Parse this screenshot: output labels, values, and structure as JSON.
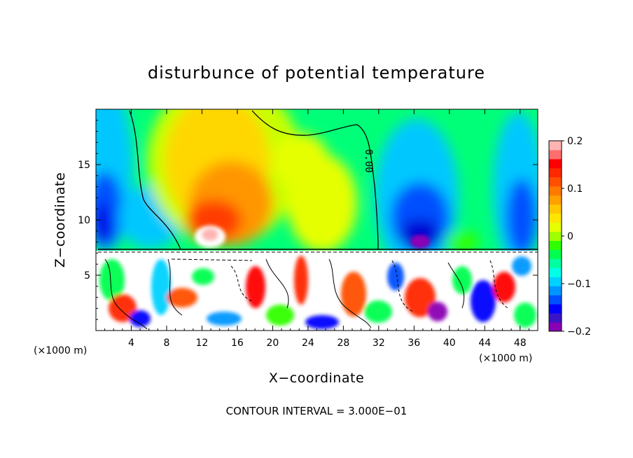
{
  "chart_data": {
    "type": "heatmap",
    "title": "disturbunce of potential temperature",
    "xlabel": "X−coordinate",
    "ylabel": "Z−coordinate",
    "x_unit": "(×1000 m)",
    "x_ticks": [
      4,
      8,
      12,
      16,
      20,
      24,
      28,
      32,
      36,
      40,
      44,
      48
    ],
    "y_ticks": [
      5,
      10,
      15
    ],
    "xlim": [
      0,
      50
    ],
    "ylim": [
      0,
      20
    ],
    "colorbar": {
      "range": [
        -0.2,
        0.2
      ],
      "tick_labels": [
        "0.2",
        "0.1",
        "0",
        "−0.1",
        "−0.2"
      ],
      "tick_values": [
        0.2,
        0.1,
        0,
        -0.1,
        -0.2
      ],
      "colors": [
        "#8a00b4",
        "#3c14c8",
        "#0000ff",
        "#0050ff",
        "#0096ff",
        "#00d2ff",
        "#00ffe6",
        "#00ffa0",
        "#00ff50",
        "#30ff00",
        "#a0ff00",
        "#e6ff00",
        "#ffe600",
        "#ffc800",
        "#ffa000",
        "#ff7800",
        "#ff5000",
        "#ff2800",
        "#ff0000",
        "#ff6e6e",
        "#ffb4b4"
      ]
    },
    "contour_label": "0.00",
    "footer": "CONTOUR INTERVAL = 3.000E−01"
  }
}
